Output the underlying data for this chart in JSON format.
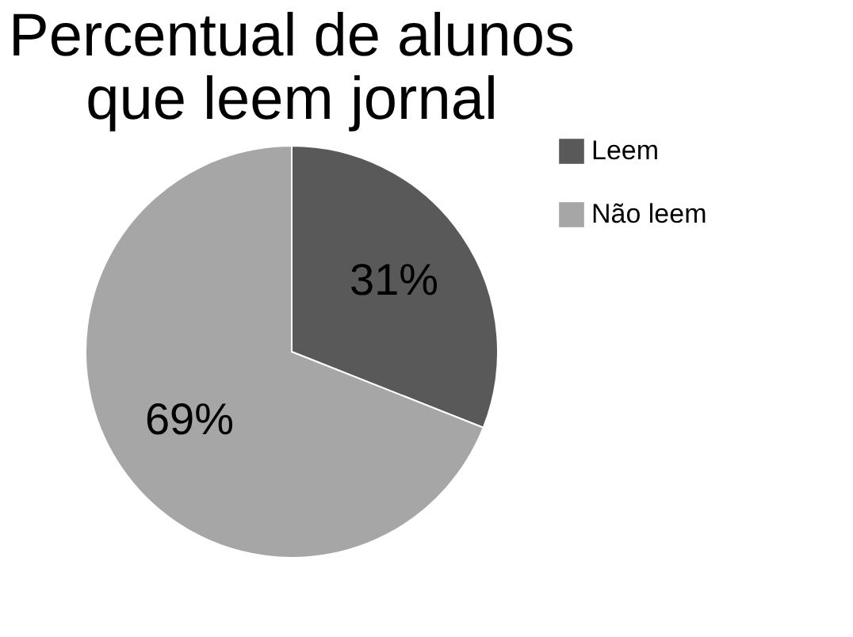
{
  "chart_data": {
    "type": "pie",
    "title": [
      "Percentual de alunos",
      "que leem jornal"
    ],
    "categories": [
      "Leem",
      "Não leem"
    ],
    "values": [
      31,
      69
    ],
    "colors": [
      "#595959",
      "#a6a6a6"
    ],
    "value_labels": [
      "31%",
      "69%"
    ],
    "legend": "right"
  }
}
